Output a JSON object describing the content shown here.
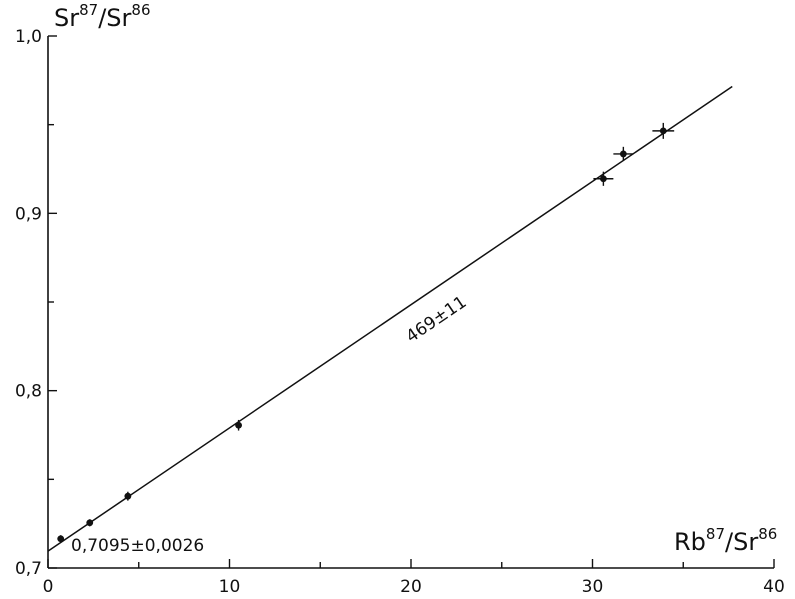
{
  "chart_data": {
    "type": "scatter",
    "xlabel": {
      "base1": "Rb",
      "sup1": "87",
      "sep": "/",
      "base2": "Sr",
      "sup2": "86"
    },
    "ylabel": {
      "base1": "Sr",
      "sup1": "87",
      "sep": "/",
      "base2": "Sr",
      "sup2": "86"
    },
    "xlim": [
      0,
      40
    ],
    "ylim": [
      0.7,
      1.0
    ],
    "x_ticks": [
      {
        "value": 0,
        "label": "0"
      },
      {
        "value": 10,
        "label": "10"
      },
      {
        "value": 20,
        "label": "20"
      },
      {
        "value": 30,
        "label": "30"
      },
      {
        "value": 40,
        "label": "40"
      }
    ],
    "y_ticks": [
      {
        "value": 0.7,
        "label": "0,7"
      },
      {
        "value": 0.8,
        "label": "0,8"
      },
      {
        "value": 0.9,
        "label": "0,9"
      },
      {
        "value": 1.0,
        "label": "1,0"
      }
    ],
    "grid": false,
    "points": [
      {
        "x": 0.7,
        "y": 0.7165,
        "xerr": 0,
        "yerr": 0.002
      },
      {
        "x": 2.3,
        "y": 0.7255,
        "xerr": 0,
        "yerr": 0.002
      },
      {
        "x": 4.4,
        "y": 0.7405,
        "xerr": 0,
        "yerr": 0.0025
      },
      {
        "x": 10.5,
        "y": 0.7805,
        "xerr": 0,
        "yerr": 0.003
      },
      {
        "x": 30.6,
        "y": 0.9195,
        "xerr": 0.55,
        "yerr": 0.004
      },
      {
        "x": 31.7,
        "y": 0.9335,
        "xerr": 0.55,
        "yerr": 0.004
      },
      {
        "x": 33.9,
        "y": 0.9465,
        "xerr": 0.6,
        "yerr": 0.0045
      }
    ],
    "fit_line": {
      "x": [
        0,
        37.7
      ],
      "y": [
        0.7095,
        0.9715
      ]
    },
    "annotations": {
      "slope": "469±11",
      "intercept": "0,7095±0,0026"
    }
  }
}
